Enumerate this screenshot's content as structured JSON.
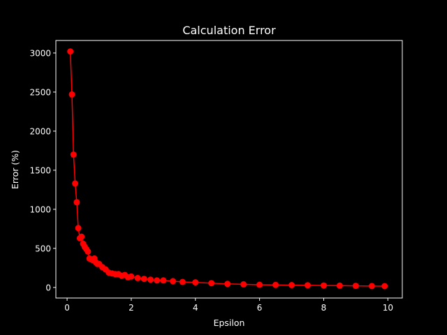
{
  "chart_data": {
    "type": "line",
    "title": "Calculation Error",
    "xlabel": "Epsilon",
    "ylabel": "Error (%)",
    "xlim": [
      -0.35,
      10.45
    ],
    "ylim": [
      -135,
      3160
    ],
    "xticks": [
      0,
      2,
      4,
      6,
      8,
      10
    ],
    "yticks": [
      0,
      500,
      1000,
      1500,
      2000,
      2500,
      3000
    ],
    "xtick_labels": [
      "0",
      "2",
      "4",
      "6",
      "8",
      "10"
    ],
    "ytick_labels": [
      "0",
      "500",
      "1000",
      "1500",
      "2000",
      "2500",
      "3000"
    ],
    "grid": false,
    "colors": {
      "background": "#000000",
      "foreground": "#ffffff",
      "series": "#ff0000"
    },
    "series": [
      {
        "marker": "circle",
        "x": [
          0.1,
          0.15,
          0.2,
          0.25,
          0.3,
          0.35,
          0.4,
          0.45,
          0.5,
          0.55,
          0.6,
          0.65,
          0.7,
          0.75,
          0.8,
          0.85,
          0.9,
          0.95,
          1.0,
          1.1,
          1.2,
          1.3,
          1.4,
          1.5,
          1.6,
          1.7,
          1.8,
          1.9,
          2.0,
          2.2,
          2.4,
          2.6,
          2.8,
          3.0,
          3.3,
          3.6,
          4.0,
          4.5,
          5.0,
          5.5,
          6.0,
          6.5,
          7.0,
          7.5,
          8.0,
          8.5,
          9.0,
          9.5,
          9.9
        ],
        "y": [
          3020,
          2470,
          1700,
          1330,
          1090,
          760,
          630,
          650,
          560,
          520,
          490,
          460,
          370,
          360,
          350,
          370,
          320,
          300,
          300,
          260,
          230,
          190,
          180,
          170,
          170,
          150,
          160,
          130,
          140,
          120,
          110,
          100,
          90,
          90,
          80,
          70,
          65,
          55,
          45,
          40,
          35,
          32,
          30,
          28,
          25,
          23,
          20,
          18,
          17
        ]
      }
    ]
  }
}
